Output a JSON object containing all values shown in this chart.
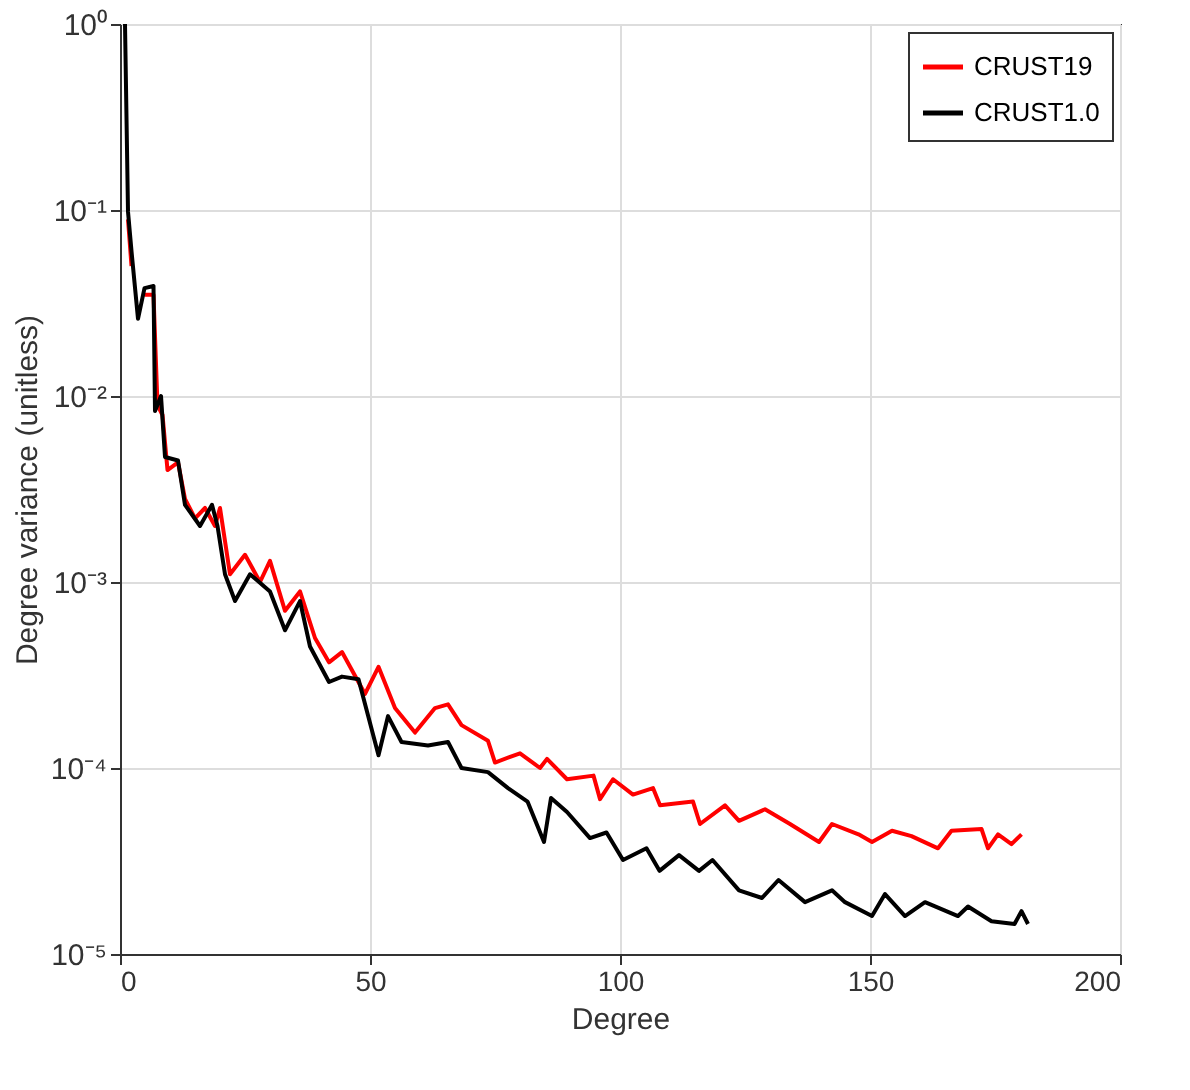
{
  "chart_data": {
    "type": "line",
    "xlabel": "Degree",
    "ylabel": "Degree variance (unitless)",
    "log": "y",
    "xlim": [
      0,
      200
    ],
    "xticks": [
      0,
      50,
      100,
      150,
      200
    ],
    "ylim": [
      1e-05,
      1
    ],
    "yticks": [
      {
        "value": 1,
        "label": "10⁰"
      },
      {
        "value": 0.1,
        "label": "10⁻¹"
      },
      {
        "value": 0.01,
        "label": "10⁻²"
      },
      {
        "value": 0.001,
        "label": "10⁻³"
      },
      {
        "value": 0.0001,
        "label": "10⁻⁴"
      },
      {
        "value": 1e-05,
        "label": "10⁻⁵"
      }
    ],
    "grid": true,
    "legend": "top right",
    "marker": "none",
    "line_style": "solid",
    "series": [
      {
        "name": "CRUST19",
        "color": "#ff0000",
        "x": [
          1.6,
          2.3,
          3.6,
          4.9,
          6.7,
          7.5,
          8.5,
          9.5,
          11.6,
          13,
          15,
          17,
          19,
          20,
          22,
          25,
          28,
          30,
          33,
          36,
          39,
          41.8,
          44.4,
          49,
          51.7,
          55,
          59,
          63,
          65.6,
          68.3,
          73.6,
          75,
          80,
          84,
          85.4,
          89.4,
          94.7,
          96,
          98.6,
          102.6,
          106.6,
          108,
          114.6,
          116,
          121,
          123.8,
          129,
          134,
          139.8,
          142.4,
          147.7,
          150.4,
          154.4,
          158.3,
          163.6,
          166.3,
          172.3,
          173.6,
          175.6,
          178.3,
          180.3
        ],
        "values": [
          0.089,
          0.05,
          null,
          0.035,
          0.035,
          0.0089,
          0.0079,
          0.004,
          0.0044,
          0.0028,
          0.0022,
          0.0025,
          0.002,
          0.0025,
          0.0011,
          0.0014,
          0.001,
          0.0013,
          0.0007,
          0.00089,
          0.0005,
          0.00037,
          0.00042,
          0.00025,
          0.00035,
          0.00021,
          0.000155,
          0.00021,
          0.00022,
          0.00017,
          0.00014,
          0.000107,
          0.00012,
          0.0001,
          0.000112,
          8.7e-05,
          9.1e-05,
          6.8e-05,
          8.7e-05,
          7.2e-05,
          7.8e-05,
          6.3e-05,
          6.6e-05,
          5e-05,
          6.3e-05,
          5.2e-05,
          6e-05,
          5e-05,
          4e-05,
          5e-05,
          4.4e-05,
          4e-05,
          4.6e-05,
          4.3e-05,
          3.7e-05,
          4.6e-05,
          4.7e-05,
          3.7e-05,
          4.4e-05,
          3.9e-05,
          4.4e-05
        ]
      },
      {
        "name": "CRUST1.0",
        "color": "#000000",
        "x": [
          1,
          1.6,
          2.3,
          3.6,
          4.9,
          6.7,
          7,
          8.2,
          9,
          11.6,
          13,
          16,
          18.4,
          19.5,
          21,
          23,
          26,
          30,
          33,
          36,
          38,
          41.8,
          44.4,
          47.7,
          51.7,
          53.6,
          56.3,
          61.6,
          65.6,
          68.3,
          73.6,
          77.6,
          81.5,
          84.8,
          86.2,
          89.4,
          94,
          97.3,
          100.6,
          105.3,
          107.9,
          111.8,
          115.8,
          118.5,
          123.8,
          128.4,
          131.7,
          137,
          142.4,
          145,
          150.4,
          153,
          157,
          161,
          167.6,
          169.6,
          174.3,
          178.9,
          180.3,
          181.6
        ],
        "values": [
          1,
          0.098,
          0.06,
          0.026,
          0.038,
          0.039,
          0.0083,
          0.01,
          0.0047,
          0.0045,
          0.0026,
          0.002,
          0.0026,
          0.002,
          0.0011,
          0.00079,
          0.0011,
          0.00089,
          0.00055,
          0.00079,
          0.00045,
          0.00029,
          0.00031,
          0.0003,
          0.000117,
          0.00019,
          0.000138,
          0.000132,
          0.000138,
          0.0001,
          9.5e-05,
          7.8e-05,
          6.6e-05,
          4e-05,
          6.9e-05,
          5.8e-05,
          4.2e-05,
          4.5e-05,
          3.2e-05,
          3.7e-05,
          2.8e-05,
          3.4e-05,
          2.8e-05,
          3.2e-05,
          2.2e-05,
          2e-05,
          2.5e-05,
          1.9e-05,
          2.2e-05,
          1.9e-05,
          1.6e-05,
          2.1e-05,
          1.6e-05,
          1.9e-05,
          1.6e-05,
          1.8e-05,
          1.5e-05,
          1.45e-05,
          1.7e-05,
          1.45e-05
        ]
      }
    ]
  }
}
